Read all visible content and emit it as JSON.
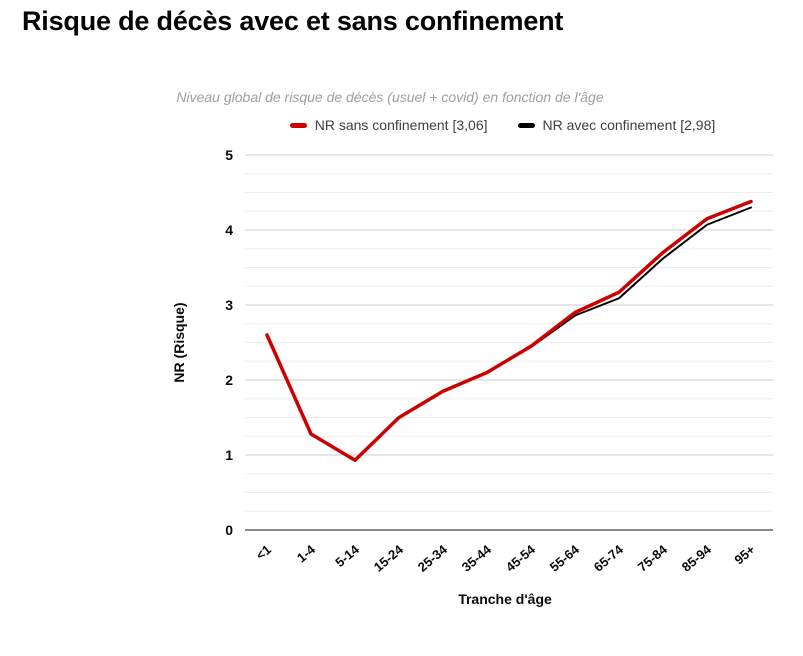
{
  "page": {
    "title": "Risque de décès avec et sans confinement"
  },
  "chart_data": {
    "type": "line",
    "title": "Risque de décès avec et sans confinement",
    "subtitle": "Niveau global de risque de décès (usuel + covid) en fonction de l'âge",
    "xlabel": "Tranche d'âge",
    "ylabel": "NR (Risque)",
    "categories": [
      "<1",
      "1-4",
      "5-14",
      "15-24",
      "25-34",
      "35-44",
      "45-54",
      "55-64",
      "65-74",
      "75-84",
      "85-94",
      "95+"
    ],
    "series": [
      {
        "name": "NR sans confinement [3,06]",
        "color": "#cc0000",
        "line_width": 3.5,
        "values": [
          2.6,
          1.28,
          0.93,
          1.5,
          1.85,
          2.1,
          2.45,
          2.9,
          3.17,
          3.7,
          4.15,
          4.38
        ]
      },
      {
        "name": "NR avec confinement [2,98]",
        "color": "#000000",
        "line_width": 2,
        "values": [
          2.6,
          1.28,
          0.93,
          1.5,
          1.85,
          2.1,
          2.44,
          2.86,
          3.09,
          3.62,
          4.07,
          4.3
        ]
      }
    ],
    "ylim": [
      0,
      5
    ],
    "yticks": [
      0,
      1,
      2,
      3,
      4,
      5
    ],
    "minor_grid_step": 0.25,
    "grid": "horizontal",
    "legend_position": "top",
    "colors": {
      "major_gridline": "#cccccc",
      "minor_gridline": "#ededed",
      "zero_axis": "#888888"
    }
  }
}
